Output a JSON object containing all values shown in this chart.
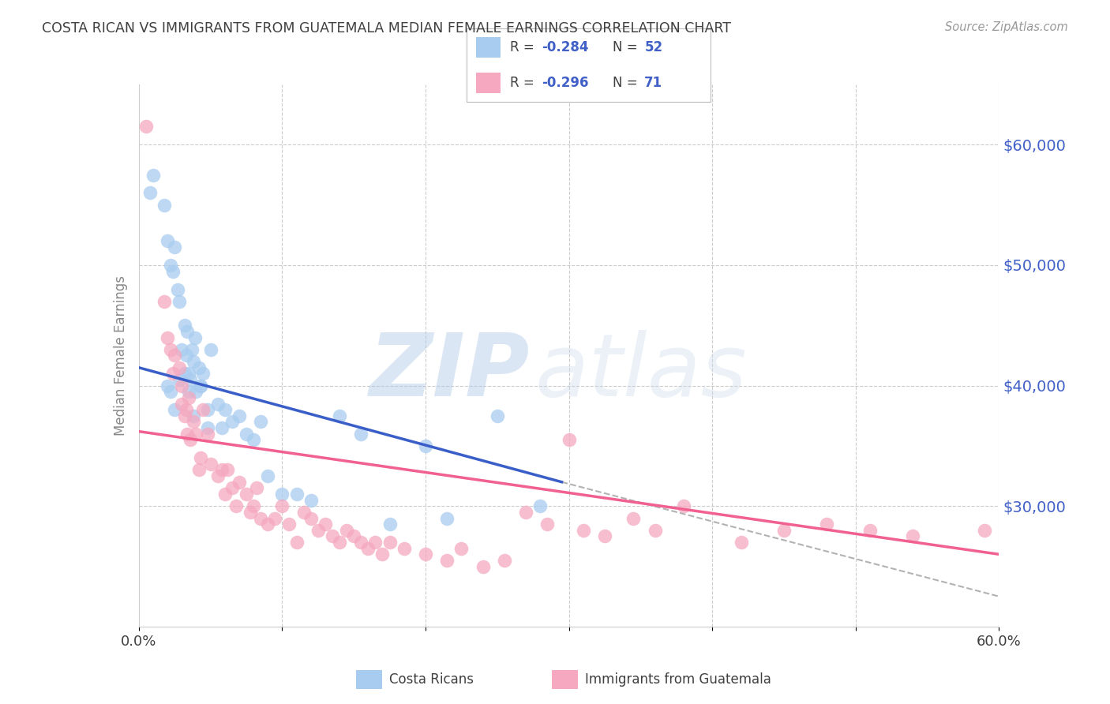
{
  "title": "COSTA RICAN VS IMMIGRANTS FROM GUATEMALA MEDIAN FEMALE EARNINGS CORRELATION CHART",
  "source": "Source: ZipAtlas.com",
  "ylabel": "Median Female Earnings",
  "xmin": 0.0,
  "xmax": 0.6,
  "ymin": 20000,
  "ymax": 65000,
  "yticks": [
    30000,
    40000,
    50000,
    60000
  ],
  "ytick_labels": [
    "$30,000",
    "$40,000",
    "$50,000",
    "$60,000"
  ],
  "xtick_positions": [
    0.0,
    0.1,
    0.2,
    0.3,
    0.4,
    0.5,
    0.6
  ],
  "xtick_labels": [
    "0.0%",
    "",
    "",
    "",
    "",
    "",
    "60.0%"
  ],
  "color_blue": "#A8CCF0",
  "color_pink": "#F5A8C0",
  "color_blue_line": "#3A5EC8",
  "color_pink_line": "#F06090",
  "color_title": "#404040",
  "color_ytick": "#4060C8",
  "color_xtick": "#404040",
  "background": "#FFFFFF",
  "watermark_zip": "ZIP",
  "watermark_atlas": "atlas",
  "blue_line_x0": 0.0,
  "blue_line_x1": 0.295,
  "blue_line_y0": 41500,
  "blue_line_y1": 32000,
  "pink_line_x0": 0.0,
  "pink_line_x1": 0.6,
  "pink_line_y0": 36200,
  "pink_line_y1": 26000,
  "dashed_line_x0": 0.295,
  "dashed_line_x1": 0.6,
  "dashed_line_y0": 32000,
  "dashed_line_y1": 22500,
  "blue_x": [
    0.008,
    0.01,
    0.018,
    0.02,
    0.022,
    0.024,
    0.025,
    0.027,
    0.028,
    0.03,
    0.032,
    0.033,
    0.034,
    0.035,
    0.036,
    0.037,
    0.038,
    0.039,
    0.04,
    0.042,
    0.043,
    0.045,
    0.048,
    0.05,
    0.055,
    0.058,
    0.06,
    0.065,
    0.07,
    0.075,
    0.08,
    0.085,
    0.09,
    0.1,
    0.11,
    0.12,
    0.14,
    0.155,
    0.175,
    0.2,
    0.215,
    0.25,
    0.28,
    0.02,
    0.022,
    0.025,
    0.028,
    0.032,
    0.035,
    0.038,
    0.043,
    0.048
  ],
  "blue_y": [
    56000,
    57500,
    55000,
    52000,
    50000,
    49500,
    51500,
    48000,
    47000,
    43000,
    45000,
    42500,
    44500,
    41000,
    40500,
    43000,
    42000,
    44000,
    39500,
    41500,
    40000,
    41000,
    38000,
    43000,
    38500,
    36500,
    38000,
    37000,
    37500,
    36000,
    35500,
    37000,
    32500,
    31000,
    31000,
    30500,
    37500,
    36000,
    28500,
    35000,
    29000,
    37500,
    30000,
    40000,
    39500,
    38000,
    40500,
    41000,
    39500,
    37500,
    40000,
    36500
  ],
  "pink_x": [
    0.005,
    0.018,
    0.02,
    0.022,
    0.024,
    0.025,
    0.028,
    0.03,
    0.03,
    0.032,
    0.033,
    0.034,
    0.035,
    0.036,
    0.038,
    0.04,
    0.042,
    0.043,
    0.045,
    0.048,
    0.05,
    0.055,
    0.058,
    0.06,
    0.062,
    0.065,
    0.068,
    0.07,
    0.075,
    0.078,
    0.08,
    0.082,
    0.085,
    0.09,
    0.095,
    0.1,
    0.105,
    0.11,
    0.115,
    0.12,
    0.125,
    0.13,
    0.135,
    0.14,
    0.145,
    0.15,
    0.155,
    0.16,
    0.165,
    0.17,
    0.175,
    0.185,
    0.2,
    0.215,
    0.225,
    0.24,
    0.255,
    0.27,
    0.285,
    0.3,
    0.31,
    0.325,
    0.345,
    0.36,
    0.38,
    0.42,
    0.45,
    0.48,
    0.51,
    0.54,
    0.59
  ],
  "pink_y": [
    61500,
    47000,
    44000,
    43000,
    41000,
    42500,
    41500,
    38500,
    40000,
    37500,
    38000,
    36000,
    39000,
    35500,
    37000,
    36000,
    33000,
    34000,
    38000,
    36000,
    33500,
    32500,
    33000,
    31000,
    33000,
    31500,
    30000,
    32000,
    31000,
    29500,
    30000,
    31500,
    29000,
    28500,
    29000,
    30000,
    28500,
    27000,
    29500,
    29000,
    28000,
    28500,
    27500,
    27000,
    28000,
    27500,
    27000,
    26500,
    27000,
    26000,
    27000,
    26500,
    26000,
    25500,
    26500,
    25000,
    25500,
    29500,
    28500,
    35500,
    28000,
    27500,
    29000,
    28000,
    30000,
    27000,
    28000,
    28500,
    28000,
    27500,
    28000
  ]
}
